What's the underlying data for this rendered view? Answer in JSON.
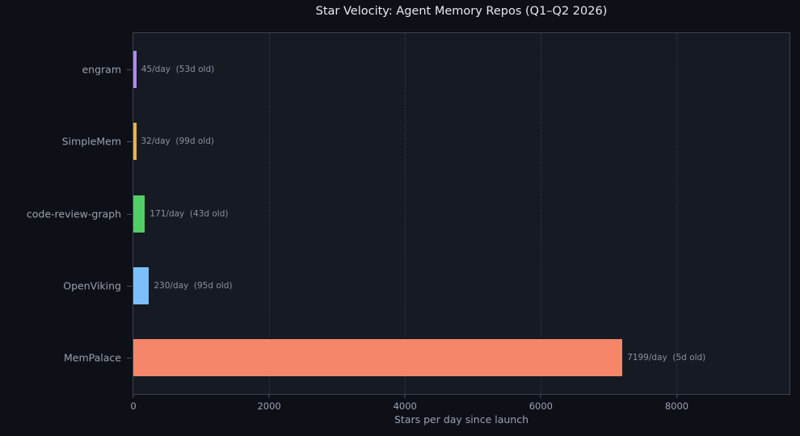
{
  "chart_data": {
    "type": "bar",
    "orientation": "horizontal",
    "title": "Star Velocity: Agent Memory Repos (Q1–Q2 2026)",
    "xlabel": "Stars per day since launch",
    "categories": [
      "engram",
      "SimpleMem",
      "code-review-graph",
      "OpenViking",
      "MemPalace"
    ],
    "values": [
      45,
      32,
      171,
      230,
      7199
    ],
    "annotations": [
      "45/day  (53d old)",
      "32/day  (99d old)",
      "171/day  (43d old)",
      "230/day  (95d old)",
      "7199/day  (5d old)"
    ],
    "bar_colors": [
      "#b18af1",
      "#ecb43f",
      "#52ce67",
      "#7cc0fb",
      "#f5866a"
    ],
    "x_ticks": [
      0,
      2000,
      4000,
      6000,
      8000
    ],
    "x_tick_labels": [
      "0",
      "2000",
      "4000",
      "6000",
      "8000"
    ],
    "xlim": [
      0,
      9660
    ],
    "grid": "vertical-dashed",
    "legend": "none"
  },
  "colors": {
    "figure_background": "#0d1017",
    "plot_background": "#161a23",
    "gridline": "#2b3140",
    "spine": "#3d4350",
    "title_text": "#e7e9ee",
    "tick_text": "#9aa2ae",
    "annotation_text": "#8a919d"
  }
}
